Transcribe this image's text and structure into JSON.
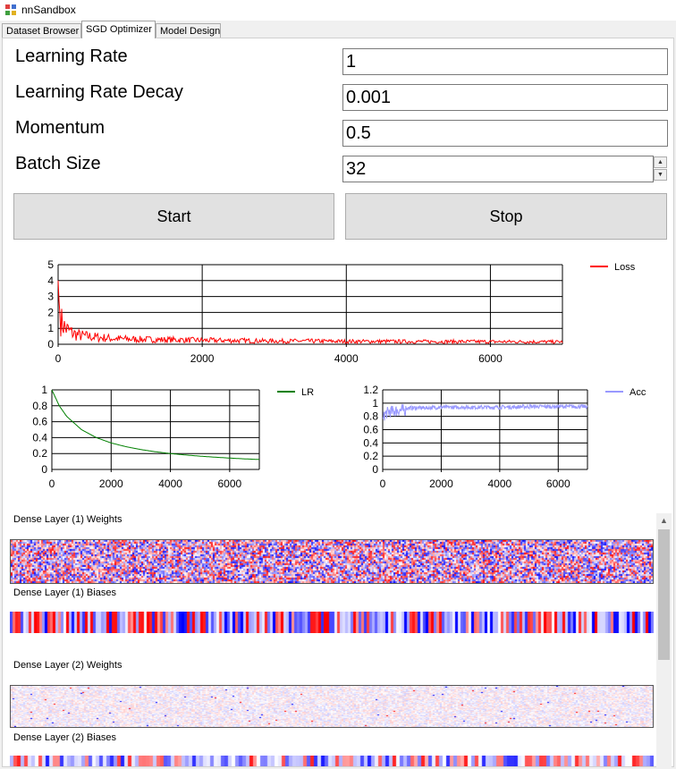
{
  "window": {
    "title": "nnSandbox"
  },
  "tabs": [
    {
      "label": "Dataset Browser"
    },
    {
      "label": "SGD Optimizer"
    },
    {
      "label": "Model Design"
    }
  ],
  "params": {
    "learning_rate": {
      "label": "Learning Rate",
      "value": "1"
    },
    "learning_rate_decay": {
      "label": "Learning Rate Decay",
      "value": "0.001"
    },
    "momentum": {
      "label": "Momentum",
      "value": "0.5"
    },
    "batch_size": {
      "label": "Batch Size",
      "value": "32"
    }
  },
  "buttons": {
    "start": "Start",
    "stop": "Stop"
  },
  "colors": {
    "loss": "#ff0000",
    "lr": "#008000",
    "acc": "#9999ff",
    "heat_pos": "#ff0000",
    "heat_neg": "#0000ff",
    "button_bg": "#e1e1e1"
  },
  "chart_data": [
    {
      "type": "line",
      "series": [
        {
          "name": "Loss",
          "x": [
            0,
            20,
            50,
            100,
            200,
            300,
            500,
            800,
            1200,
            1600,
            2000,
            2500,
            3000,
            3500,
            4000,
            4500,
            5000,
            5500,
            6000,
            6500,
            7000
          ],
          "values": [
            4.0,
            2.0,
            1.4,
            1.0,
            0.7,
            0.55,
            0.45,
            0.35,
            0.3,
            0.28,
            0.25,
            0.23,
            0.2,
            0.2,
            0.18,
            0.18,
            0.17,
            0.17,
            0.16,
            0.16,
            0.15
          ]
        }
      ],
      "xlim": [
        0,
        7000
      ],
      "ylim": [
        0,
        5
      ],
      "xticks": [
        "0",
        "2000",
        "4000",
        "6000"
      ],
      "yticks": [
        "0",
        "1",
        "2",
        "3",
        "4",
        "5"
      ],
      "legend": "top-right",
      "grid": true
    },
    {
      "type": "line",
      "series": [
        {
          "name": "LR",
          "x": [
            0,
            250,
            500,
            1000,
            1500,
            2000,
            2500,
            3000,
            3500,
            4000,
            4500,
            5000,
            5500,
            6000,
            6500,
            7000
          ],
          "values": [
            1.0,
            0.8,
            0.667,
            0.5,
            0.4,
            0.333,
            0.286,
            0.25,
            0.222,
            0.2,
            0.182,
            0.167,
            0.154,
            0.143,
            0.133,
            0.125
          ]
        }
      ],
      "xlim": [
        0,
        7000
      ],
      "ylim": [
        0,
        1
      ],
      "xticks": [
        "0",
        "2000",
        "4000",
        "6000"
      ],
      "yticks": [
        "0",
        "0.2",
        "0.4",
        "0.6",
        "0.8",
        "1"
      ],
      "legend": "top-right",
      "grid": true
    },
    {
      "type": "line",
      "series": [
        {
          "name": "Acc",
          "x": [
            0,
            50,
            100,
            200,
            400,
            700,
            1000,
            1500,
            2000,
            3000,
            4000,
            5000,
            6000,
            7000
          ],
          "values": [
            0.75,
            0.85,
            0.88,
            0.9,
            0.92,
            0.93,
            0.94,
            0.94,
            0.95,
            0.95,
            0.95,
            0.96,
            0.96,
            0.96
          ]
        }
      ],
      "xlim": [
        0,
        7000
      ],
      "ylim": [
        0,
        1.2
      ],
      "xticks": [
        "0",
        "2000",
        "4000",
        "6000"
      ],
      "yticks": [
        "0",
        "0.2",
        "0.4",
        "0.6",
        "0.8",
        "1",
        "1.2"
      ],
      "legend": "top-right",
      "grid": true
    }
  ],
  "layers": {
    "l1_weights": "Dense Layer (1) Weights",
    "l1_biases": "Dense Layer (1) Biases",
    "l2_weights": "Dense Layer (2) Weights",
    "l2_biases": "Dense Layer (2) Biases"
  }
}
